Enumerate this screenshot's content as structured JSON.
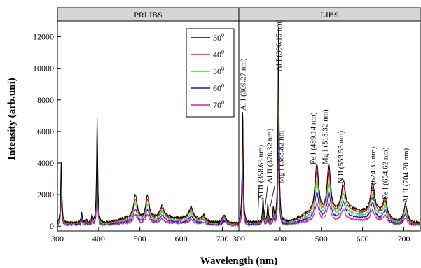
{
  "chart_data": {
    "type": "line",
    "xlabel": "Wavelength (nm)",
    "ylabel": "Intensity (arb.uni)",
    "ylim": [
      -300,
      13000
    ],
    "yticks": [
      0,
      2000,
      4000,
      6000,
      8000,
      10000,
      12000
    ],
    "grid": false,
    "legend_position": "top-right of left panel",
    "panels": [
      {
        "title": "PRLIBS",
        "xlim": [
          300,
          740
        ],
        "xticks": [
          300,
          400,
          500,
          600,
          700
        ]
      },
      {
        "title": "LIBS",
        "xlim": [
          300,
          740
        ],
        "xticks": [
          300,
          400,
          500,
          600,
          700
        ]
      }
    ],
    "series": [
      {
        "name": "30°",
        "legend_label": "30",
        "legend_sup": "0",
        "color": "#000000"
      },
      {
        "name": "40°",
        "legend_label": "40",
        "legend_sup": "0",
        "color": "#e8161d"
      },
      {
        "name": "50°",
        "legend_label": "50",
        "legend_sup": "0",
        "color": "#2be32b"
      },
      {
        "name": "60°",
        "legend_label": "60",
        "legend_sup": "0",
        "color": "#1616e0"
      },
      {
        "name": "70°",
        "legend_label": "70",
        "legend_sup": "0",
        "color": "#e0198c"
      }
    ],
    "spectra_30deg": {
      "PRLIBS": {
        "baseline": 250,
        "peaks": [
          [
            309.3,
            4200
          ],
          [
            358.7,
            950
          ],
          [
            370.3,
            450
          ],
          [
            383.8,
            700
          ],
          [
            396.2,
            6950
          ],
          [
            489.1,
            1800
          ],
          [
            518.3,
            1800
          ],
          [
            553.5,
            950
          ],
          [
            624.3,
            950
          ],
          [
            654.6,
            650
          ],
          [
            704.2,
            750
          ]
        ]
      },
      "LIBS": {
        "baseline": 250,
        "peaks": [
          [
            309.3,
            7500
          ],
          [
            358.7,
            1800
          ],
          [
            370.3,
            1400
          ],
          [
            383.8,
            1100
          ],
          [
            396.2,
            12600
          ],
          [
            489.1,
            3400
          ],
          [
            518.3,
            3400
          ],
          [
            553.5,
            2050
          ],
          [
            624.3,
            2050
          ],
          [
            654.6,
            1450
          ],
          [
            704.2,
            1450
          ]
        ]
      }
    },
    "series_scale": [
      1.0,
      0.88,
      0.72,
      0.55,
      0.38
    ],
    "annotations": [
      {
        "text": "Al I (309.27 nm)",
        "x": 309.27
      },
      {
        "text": "Al II (358.65 nm)",
        "x": 358.65
      },
      {
        "text": "Al II (370.32 nm)",
        "x": 370.32
      },
      {
        "text": "Mg I (383.82 nm)",
        "x": 383.82
      },
      {
        "text": "Al I (396.15 nm)",
        "x": 396.15
      },
      {
        "text": "Fe I (489.14 nm)",
        "x": 489.14
      },
      {
        "text": "Mg I (518.32 nm)",
        "x": 518.32
      },
      {
        "text": "N II (553.53 nm)",
        "x": 553.53
      },
      {
        "text": "Al II (624.33 nm)",
        "x": 624.33
      },
      {
        "text": "Fe I (654.62 nm)",
        "x": 654.62
      },
      {
        "text": "Al II (704.20 nm)",
        "x": 704.2
      }
    ]
  }
}
